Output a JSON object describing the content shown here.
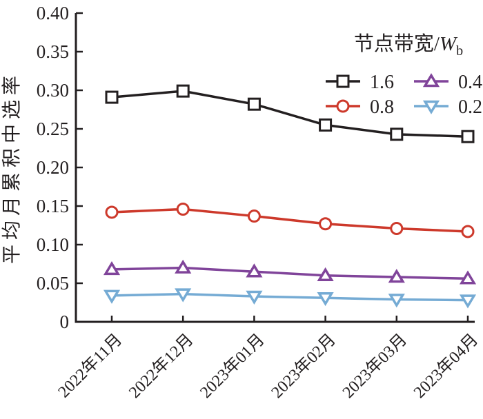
{
  "figure": {
    "background": "#ffffff",
    "axis_color": "#231f20"
  },
  "legend": {
    "title_main": "节点带宽/",
    "title_var": "W",
    "title_sub": "b",
    "position": "top-right-inside"
  },
  "chart_data": {
    "type": "line",
    "title": "",
    "xlabel": "",
    "ylabel": "平均月累积中选率",
    "legend_title": "节点带宽/Wb",
    "categories": [
      "2022年11月",
      "2022年12月",
      "2023年01月",
      "2023年02月",
      "2023年03月",
      "2023年04月"
    ],
    "series": [
      {
        "name": "1.6",
        "color": "#231f20",
        "marker": "square",
        "values": [
          0.291,
          0.299,
          0.282,
          0.255,
          0.243,
          0.24
        ]
      },
      {
        "name": "0.8",
        "color": "#cd392b",
        "marker": "circle",
        "values": [
          0.142,
          0.146,
          0.137,
          0.127,
          0.121,
          0.117
        ]
      },
      {
        "name": "0.4",
        "color": "#80449a",
        "marker": "triangle-up",
        "values": [
          0.068,
          0.07,
          0.065,
          0.06,
          0.058,
          0.056
        ]
      },
      {
        "name": "0.2",
        "color": "#75abd4",
        "marker": "triangle-down",
        "values": [
          0.034,
          0.036,
          0.033,
          0.031,
          0.029,
          0.028
        ]
      }
    ],
    "ylim": [
      0,
      0.4
    ],
    "ytick_step": 0.05,
    "ytick_labels": [
      "0",
      "0.05",
      "0.10",
      "0.15",
      "0.20",
      "0.25",
      "0.30",
      "0.35",
      "0.40"
    ],
    "xtick_rotation_deg": -45,
    "grid": false,
    "spines": [
      "left",
      "bottom"
    ]
  }
}
